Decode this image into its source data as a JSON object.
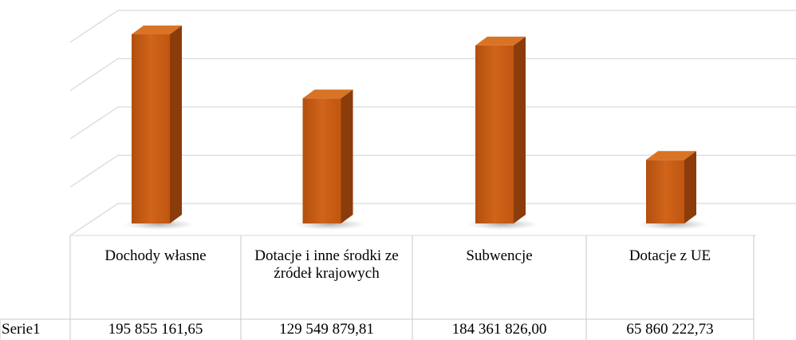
{
  "chart_data": {
    "type": "bar",
    "categories": [
      "Dochody własne",
      "Dotacje i inne środki ze źródeł krajowych",
      "Subwencje",
      "Dotacje z UE"
    ],
    "series": [
      {
        "name": "Serie1",
        "color": "#c55a11",
        "values": [
          195855161.65,
          129549879.81,
          184361826.0,
          65860222.73
        ],
        "value_labels": [
          "195 855 161,65",
          "129 549 879,81",
          "184 361 826,00",
          "65 860 222,73"
        ]
      }
    ],
    "ylim": [
      0,
      200000000
    ],
    "yticks": [
      0,
      50000000,
      100000000,
      150000000,
      200000000
    ],
    "grid": true
  }
}
